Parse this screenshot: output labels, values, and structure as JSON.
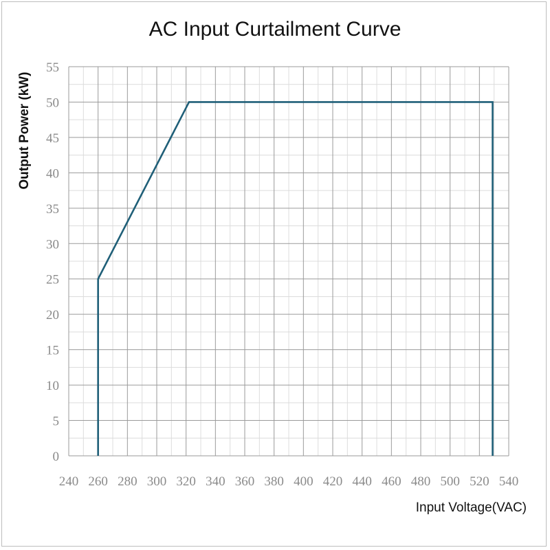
{
  "chart_data": {
    "type": "line",
    "title": "AC Input Curtailment Curve",
    "xlabel": "Input Voltage(VAC)",
    "ylabel": "Output Power (kW)",
    "xlim": [
      240,
      540
    ],
    "ylim": [
      0,
      55
    ],
    "xticks": [
      240,
      260,
      280,
      300,
      320,
      340,
      360,
      380,
      400,
      420,
      440,
      460,
      480,
      500,
      520,
      540
    ],
    "yticks": [
      0,
      5,
      10,
      15,
      20,
      25,
      30,
      35,
      40,
      45,
      50,
      55
    ],
    "grid": true,
    "series": [
      {
        "points": [
          [
            260,
            0
          ],
          [
            260,
            25
          ],
          [
            322,
            50
          ],
          [
            529,
            50
          ],
          [
            529,
            0
          ]
        ],
        "color": "#1f5f78"
      }
    ],
    "colors": {
      "grid_major": "#9a9a9a",
      "grid_minor": "#dcdcdc",
      "line": "#1f5f78"
    }
  }
}
